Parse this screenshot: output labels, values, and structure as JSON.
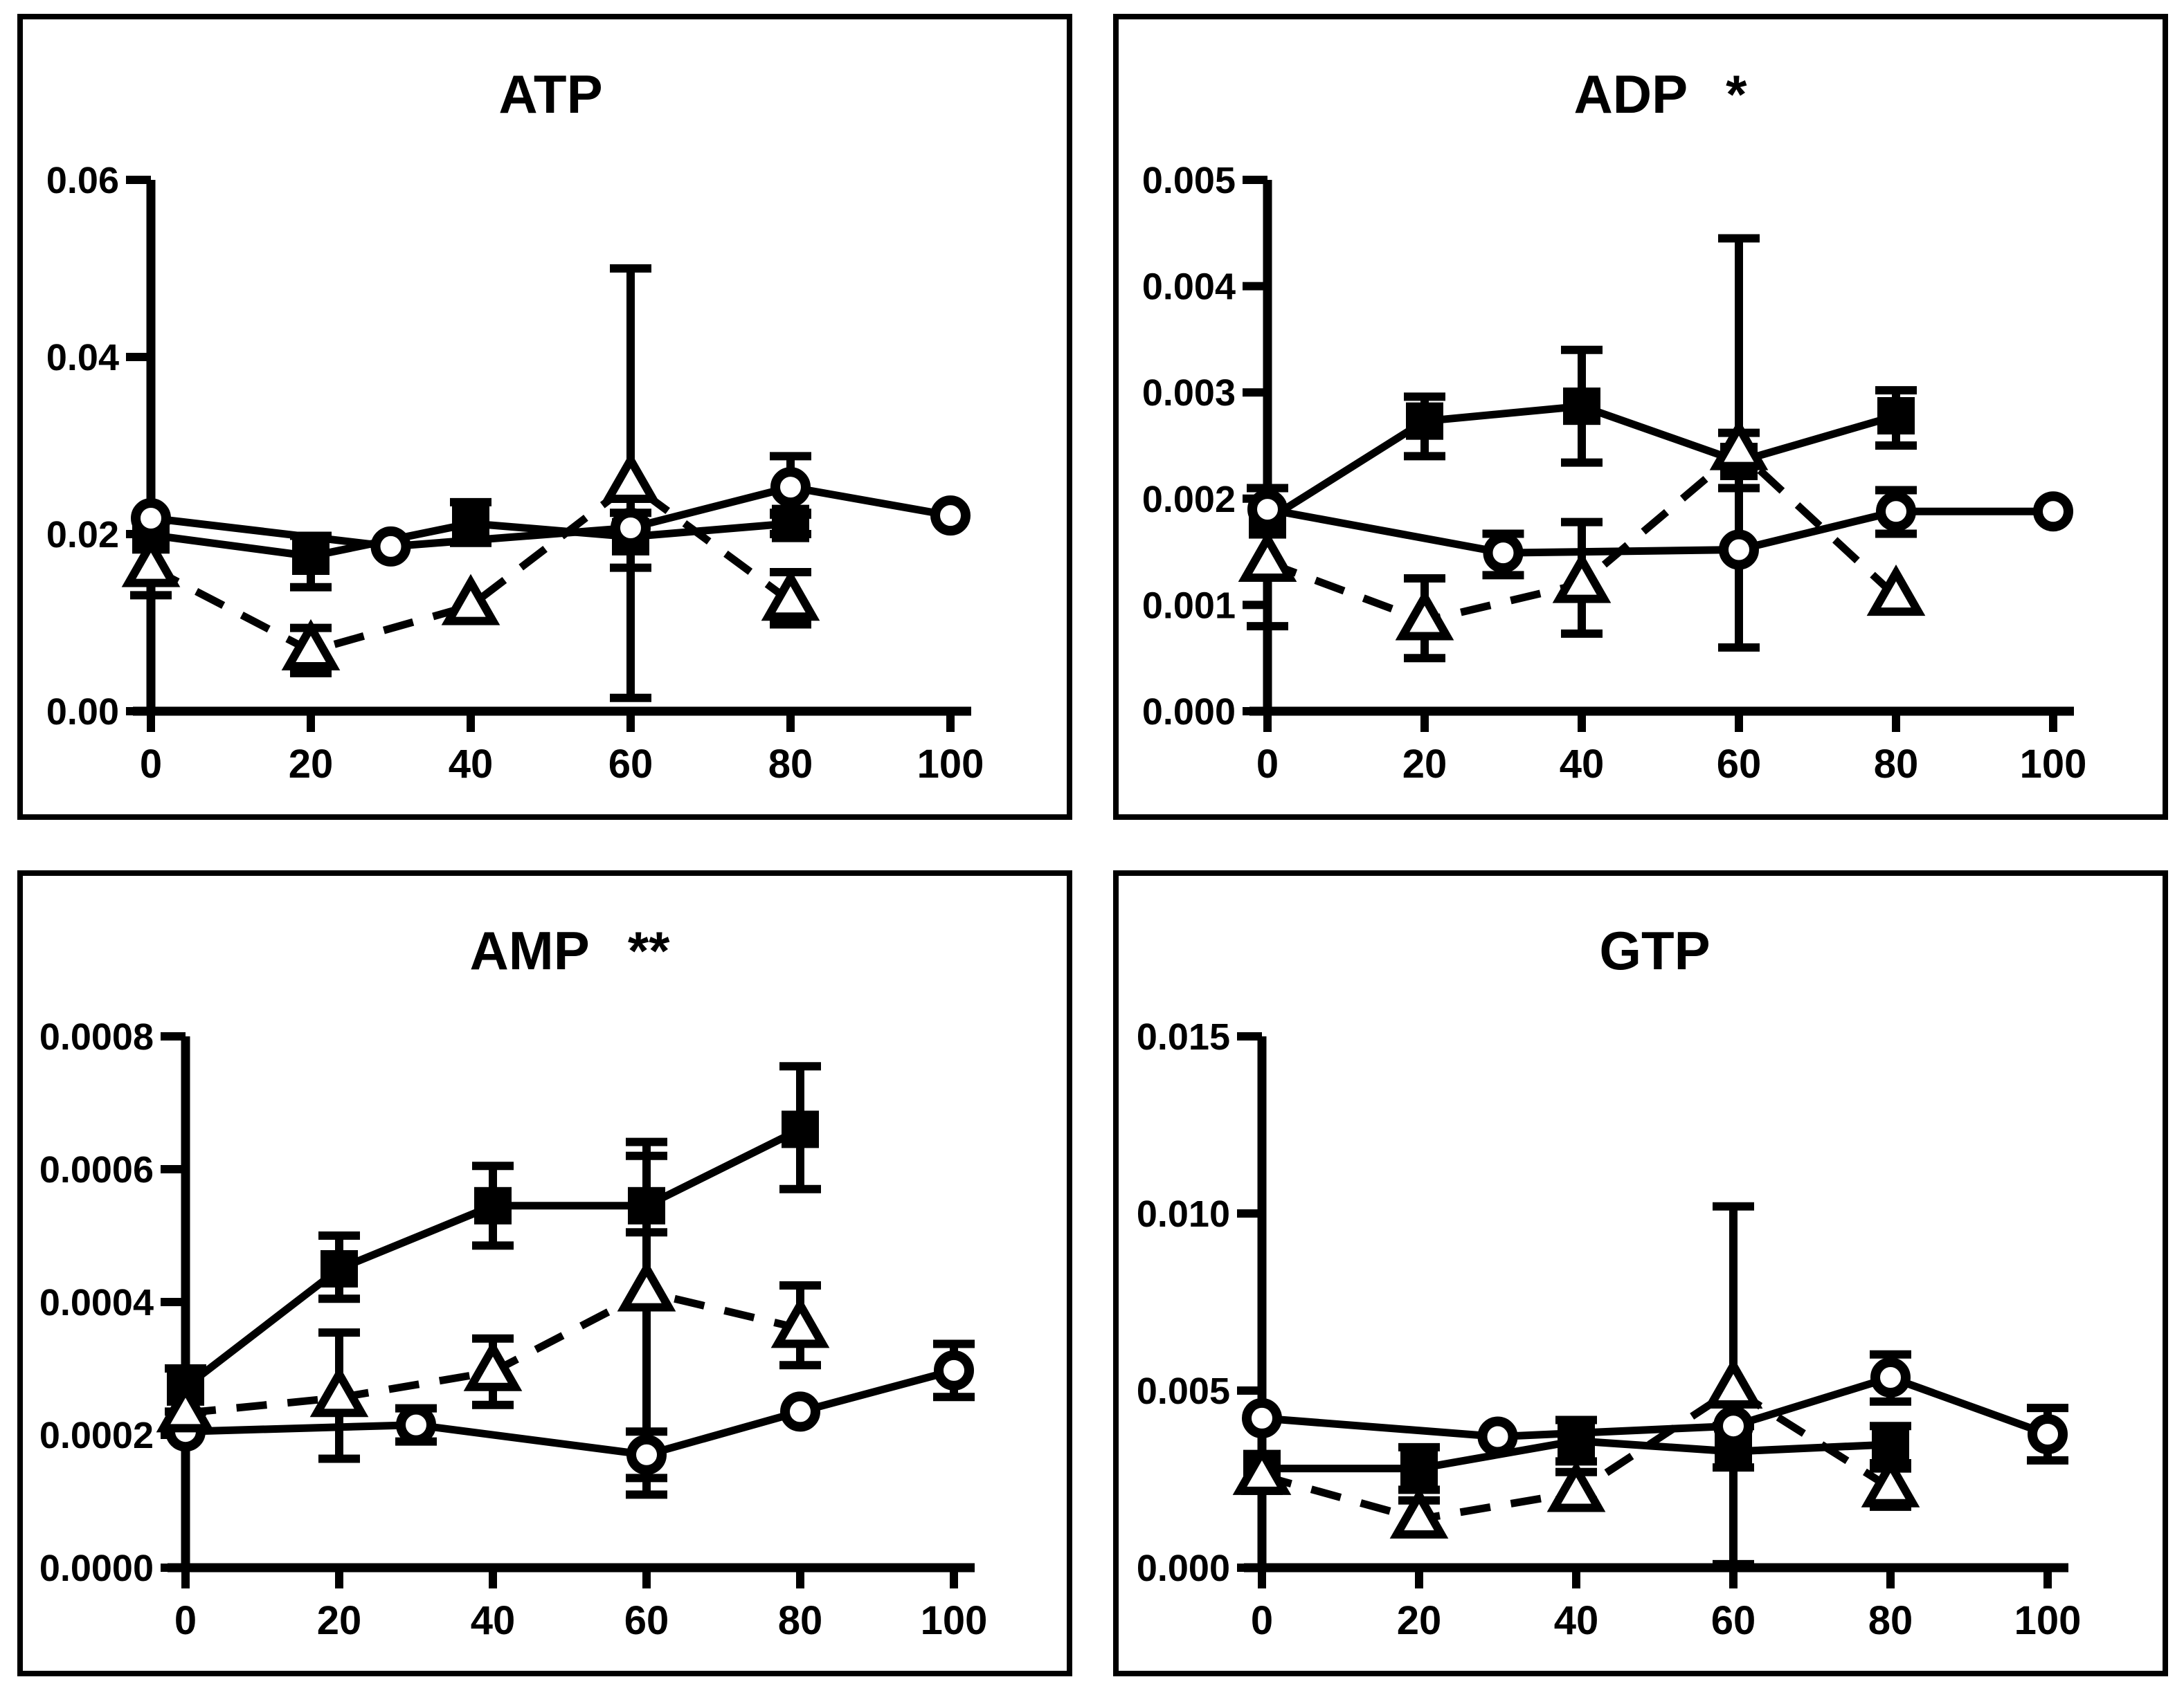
{
  "figure": {
    "background_color": "#ffffff",
    "ink_color": "#000000",
    "layout": "2x2-grid",
    "legend": "none"
  },
  "chart_data": [
    {
      "id": "atp",
      "type": "line",
      "title": "ATP",
      "significance": "",
      "xlabel": "",
      "ylabel": "",
      "x_tick_labels": [
        "0",
        "20",
        "40",
        "60",
        "80",
        "100"
      ],
      "x_tick_values": [
        0,
        20,
        40,
        60,
        80,
        100
      ],
      "xlim": [
        0,
        100
      ],
      "y_tick_labels": [
        "0.00",
        "0.02",
        "0.04",
        "0.06"
      ],
      "y_tick_values": [
        0,
        0.02,
        0.04,
        0.06
      ],
      "ylim": [
        0,
        0.06
      ],
      "grid": "off",
      "series": [
        {
          "name": "filled-square-solid",
          "marker": "square",
          "line": "solid",
          "x": [
            0,
            20,
            40,
            60,
            80
          ],
          "y": [
            0.0199,
            0.0175,
            0.0212,
            0.0197,
            0.0212
          ],
          "lo": [
            0.0199,
            0.014,
            0.019,
            0.0162,
            0.02
          ],
          "hi": [
            0.0199,
            0.0198,
            0.0236,
            0.0224,
            0.0224
          ]
        },
        {
          "name": "open-circle-solid",
          "marker": "circle",
          "line": "solid",
          "x": [
            0,
            30,
            60,
            80,
            100
          ],
          "y": [
            0.0218,
            0.0186,
            0.0207,
            0.0253,
            0.0221
          ],
          "lo": [
            0.0218,
            0.0186,
            0.0207,
            0.0222,
            0.0221
          ],
          "hi": [
            0.0218,
            0.0186,
            0.0207,
            0.0288,
            0.0221
          ]
        },
        {
          "name": "open-triangle-dashed",
          "marker": "triangle",
          "line": "dashed",
          "x": [
            0,
            20,
            40,
            60,
            80
          ],
          "y": [
            0.0162,
            0.0068,
            0.0119,
            0.0257,
            0.0124
          ],
          "lo": [
            0.0131,
            0.0043,
            0.0119,
            0.0015,
            0.0098
          ],
          "hi": [
            0.0162,
            0.0094,
            0.0119,
            0.05,
            0.0157
          ]
        }
      ]
    },
    {
      "id": "adp",
      "type": "line",
      "title": "ADP",
      "significance": "*",
      "xlabel": "",
      "ylabel": "",
      "x_tick_labels": [
        "0",
        "20",
        "40",
        "60",
        "80",
        "100"
      ],
      "x_tick_values": [
        0,
        20,
        40,
        60,
        80,
        100
      ],
      "xlim": [
        0,
        100
      ],
      "y_tick_labels": [
        "0.000",
        "0.001",
        "0.002",
        "0.003",
        "0.004",
        "0.005"
      ],
      "y_tick_values": [
        0,
        0.001,
        0.002,
        0.003,
        0.004,
        0.005
      ],
      "ylim": [
        0,
        0.005
      ],
      "grid": "off",
      "series": [
        {
          "name": "filled-square-solid",
          "marker": "square",
          "line": "solid",
          "x": [
            0,
            20,
            40,
            60,
            80
          ],
          "y": [
            0.0018,
            0.00273,
            0.00287,
            0.00235,
            0.00278
          ],
          "lo": [
            0.0008,
            0.0024,
            0.00234,
            0.0021,
            0.0025
          ],
          "hi": [
            0.0021,
            0.00296,
            0.0034,
            0.00262,
            0.00302
          ]
        },
        {
          "name": "open-circle-solid",
          "marker": "circle",
          "line": "solid",
          "x": [
            0,
            30,
            60,
            80,
            100
          ],
          "y": [
            0.0019,
            0.00149,
            0.00152,
            0.00188,
            0.00188
          ],
          "lo": [
            0.0019,
            0.00128,
            0.00152,
            0.00167,
            0.00188
          ],
          "hi": [
            0.0019,
            0.00167,
            0.00152,
            0.00208,
            0.00188
          ]
        },
        {
          "name": "open-triangle-dashed",
          "marker": "triangle",
          "line": "dashed",
          "x": [
            0,
            20,
            40,
            60,
            80
          ],
          "y": [
            0.0014,
            0.00085,
            0.0012,
            0.00245,
            0.00108
          ],
          "lo": [
            0.0014,
            0.0005,
            0.00073,
            0.0006,
            0.00108
          ],
          "hi": [
            0.0014,
            0.00125,
            0.00178,
            0.00445,
            0.00108
          ]
        }
      ]
    },
    {
      "id": "amp",
      "type": "line",
      "title": "AMP",
      "significance": "**",
      "xlabel": "",
      "ylabel": "",
      "x_tick_labels": [
        "0",
        "20",
        "40",
        "60",
        "80",
        "100"
      ],
      "x_tick_values": [
        0,
        20,
        40,
        60,
        80,
        100
      ],
      "xlim": [
        0,
        100
      ],
      "y_tick_labels": [
        "0.0000",
        "0.0002",
        "0.0004",
        "0.0006",
        "0.0008"
      ],
      "y_tick_values": [
        0,
        0.0002,
        0.0004,
        0.0006,
        0.0008
      ],
      "ylim": [
        0,
        0.0008
      ],
      "grid": "off",
      "series": [
        {
          "name": "filled-square-solid",
          "marker": "square",
          "line": "solid",
          "x": [
            0,
            20,
            40,
            60,
            80
          ],
          "y": [
            0.000272,
            0.00045,
            0.000545,
            0.000545,
            0.00066
          ],
          "lo": [
            0.000235,
            0.000405,
            0.000485,
            0.000505,
            0.00057
          ],
          "hi": [
            0.0003,
            0.0005,
            0.000605,
            0.00062,
            0.000755
          ]
        },
        {
          "name": "open-circle-solid",
          "marker": "circle",
          "line": "solid",
          "x": [
            0,
            30,
            60,
            80,
            100
          ],
          "y": [
            0.000205,
            0.000215,
            0.00017,
            0.000235,
            0.000297
          ],
          "lo": [
            0.000205,
            0.00019,
            0.000135,
            0.000235,
            0.000257
          ],
          "hi": [
            0.000205,
            0.00024,
            0.000205,
            0.000235,
            0.000337
          ]
        },
        {
          "name": "open-triangle-dashed",
          "marker": "triangle",
          "line": "dashed",
          "x": [
            0,
            20,
            40,
            60,
            80
          ],
          "y": [
            0.000233,
            0.000256,
            0.000295,
            0.000415,
            0.00036
          ],
          "lo": [
            0.000233,
            0.000164,
            0.000245,
            0.00011,
            0.000305
          ],
          "hi": [
            0.000233,
            0.000354,
            0.000345,
            0.000641,
            0.000425
          ]
        }
      ]
    },
    {
      "id": "gtp",
      "type": "line",
      "title": "GTP",
      "significance": "",
      "xlabel": "",
      "ylabel": "",
      "x_tick_labels": [
        "0",
        "20",
        "40",
        "60",
        "80",
        "100"
      ],
      "x_tick_values": [
        0,
        20,
        40,
        60,
        80,
        100
      ],
      "xlim": [
        0,
        100
      ],
      "y_tick_labels": [
        "0.000",
        "0.005",
        "0.010",
        "0.015"
      ],
      "y_tick_values": [
        0,
        0.005,
        0.01,
        0.015
      ],
      "ylim": [
        0,
        0.015
      ],
      "grid": "off",
      "series": [
        {
          "name": "filled-square-solid",
          "marker": "square",
          "line": "solid",
          "x": [
            0,
            20,
            40,
            60,
            80
          ],
          "y": [
            0.0028,
            0.0028,
            0.00358,
            0.00328,
            0.00348
          ],
          "lo": [
            0.0028,
            0.0022,
            0.003,
            0.00283,
            0.00295
          ],
          "hi": [
            0.0028,
            0.0034,
            0.00417,
            0.004,
            0.004
          ]
        },
        {
          "name": "open-circle-solid",
          "marker": "circle",
          "line": "solid",
          "x": [
            0,
            30,
            60,
            80,
            100
          ],
          "y": [
            0.00422,
            0.0037,
            0.004,
            0.00537,
            0.00377
          ],
          "lo": [
            0.00422,
            0.0037,
            0.004,
            0.00469,
            0.00303
          ],
          "hi": [
            0.00422,
            0.0037,
            0.004,
            0.00602,
            0.00451
          ]
        },
        {
          "name": "open-triangle-dashed",
          "marker": "triangle",
          "line": "dashed",
          "x": [
            0,
            20,
            40,
            60,
            80
          ],
          "y": [
            0.0026,
            0.00137,
            0.00212,
            0.00504,
            0.00225
          ],
          "lo": [
            0.00217,
            0.001,
            0.0019,
            0.0001,
            0.00172
          ],
          "hi": [
            0.0026,
            0.0019,
            0.0027,
            0.0102,
            0.0028
          ]
        }
      ]
    }
  ]
}
